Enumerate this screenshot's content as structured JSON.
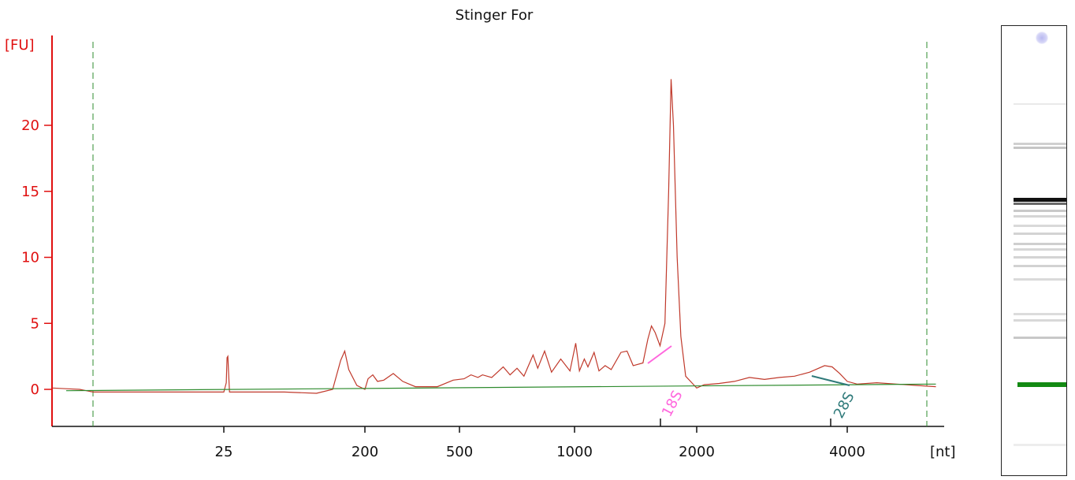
{
  "chart_data": {
    "type": "line",
    "title": "Stinger For",
    "ylabel": "[FU]",
    "xlabel": "[nt]",
    "y_ticks": [
      0,
      5,
      10,
      15,
      20
    ],
    "x_tick_labels": [
      "25",
      "200",
      "500",
      "1000",
      "2000",
      "4000"
    ],
    "ylim": [
      -2.5,
      26
    ],
    "x_axis": "nonlinear ladder scale (nt)",
    "peak_labels": [
      {
        "label": "18S",
        "color": "#ff66dd"
      },
      {
        "label": "28S",
        "color": "#2f7a7a"
      }
    ],
    "series": [
      {
        "color": "#c0392b",
        "points": [
          [
            -30,
            0.1
          ],
          [
            -20,
            0.05
          ],
          [
            -10,
            0.0
          ],
          [
            -5,
            -0.1
          ],
          [
            0,
            -0.2
          ],
          [
            10,
            -0.2
          ],
          [
            25,
            -0.2
          ],
          [
            28,
            0.5
          ],
          [
            29,
            2.4
          ],
          [
            30,
            2.5
          ],
          [
            31,
            1.2
          ],
          [
            32,
            -0.2
          ],
          [
            40,
            -0.2
          ],
          [
            100,
            -0.2
          ],
          [
            140,
            -0.3
          ],
          [
            160,
            0.0
          ],
          [
            170,
            2.2
          ],
          [
            175,
            2.9
          ],
          [
            180,
            1.5
          ],
          [
            190,
            0.3
          ],
          [
            200,
            0.0
          ],
          [
            210,
            0.8
          ],
          [
            225,
            1.1
          ],
          [
            240,
            0.6
          ],
          [
            260,
            0.7
          ],
          [
            290,
            1.2
          ],
          [
            320,
            0.6
          ],
          [
            360,
            0.2
          ],
          [
            430,
            0.2
          ],
          [
            480,
            0.7
          ],
          [
            520,
            0.8
          ],
          [
            550,
            1.1
          ],
          [
            580,
            0.9
          ],
          [
            600,
            1.1
          ],
          [
            640,
            0.9
          ],
          [
            690,
            1.7
          ],
          [
            720,
            1.1
          ],
          [
            750,
            1.6
          ],
          [
            780,
            1.0
          ],
          [
            820,
            2.6
          ],
          [
            840,
            1.6
          ],
          [
            870,
            2.9
          ],
          [
            900,
            1.3
          ],
          [
            940,
            2.3
          ],
          [
            980,
            1.4
          ],
          [
            1010,
            3.5
          ],
          [
            1040,
            1.4
          ],
          [
            1080,
            2.3
          ],
          [
            1110,
            1.7
          ],
          [
            1160,
            2.8
          ],
          [
            1200,
            1.4
          ],
          [
            1250,
            1.8
          ],
          [
            1300,
            1.5
          ],
          [
            1380,
            2.8
          ],
          [
            1430,
            2.9
          ],
          [
            1480,
            1.8
          ],
          [
            1560,
            2.0
          ],
          [
            1600,
            3.8
          ],
          [
            1630,
            4.8
          ],
          [
            1660,
            4.3
          ],
          [
            1700,
            3.3
          ],
          [
            1740,
            5.0
          ],
          [
            1770,
            15.0
          ],
          [
            1790,
            23.5
          ],
          [
            1810,
            20.0
          ],
          [
            1840,
            10.0
          ],
          [
            1870,
            4.0
          ],
          [
            1910,
            1.0
          ],
          [
            1960,
            0.5
          ],
          [
            2000,
            0.1
          ],
          [
            2100,
            0.35
          ],
          [
            2300,
            0.45
          ],
          [
            2500,
            0.6
          ],
          [
            2700,
            0.9
          ],
          [
            2900,
            0.75
          ],
          [
            3100,
            0.9
          ],
          [
            3300,
            1.0
          ],
          [
            3500,
            1.3
          ],
          [
            3700,
            1.8
          ],
          [
            3800,
            1.7
          ],
          [
            3900,
            1.2
          ],
          [
            4000,
            0.6
          ],
          [
            4200,
            0.4
          ],
          [
            4600,
            0.5
          ],
          [
            5000,
            0.4
          ],
          [
            5400,
            0.3
          ],
          [
            5800,
            0.2
          ]
        ]
      },
      {
        "color": "#2e8b2e",
        "points": [
          [
            -20,
            -0.1
          ],
          [
            5800,
            0.4
          ]
        ]
      }
    ]
  }
}
